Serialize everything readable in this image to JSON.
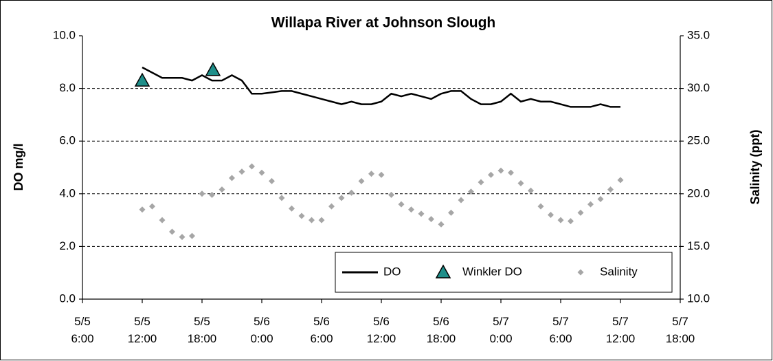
{
  "chart_data": {
    "type": "line",
    "title": "Willapa River at Johnson Slough",
    "y_label": "DO mg/l",
    "y2_label": "Salinity (ppt)",
    "xlim": [
      6,
      66
    ],
    "xticks": [
      {
        "value": 6,
        "label": "5/5 6:00"
      },
      {
        "value": 12,
        "label": "5/5 12:00"
      },
      {
        "value": 18,
        "label": "5/5 18:00"
      },
      {
        "value": 24,
        "label": "5/6 0:00"
      },
      {
        "value": 30,
        "label": "5/6 6:00"
      },
      {
        "value": 36,
        "label": "5/6 12:00"
      },
      {
        "value": 42,
        "label": "5/6 18:00"
      },
      {
        "value": 48,
        "label": "5/7 0:00"
      },
      {
        "value": 54,
        "label": "5/7 6:00"
      },
      {
        "value": 60,
        "label": "5/7 12:00"
      },
      {
        "value": 66,
        "label": "5/7 18:00"
      }
    ],
    "ylim": [
      0,
      10
    ],
    "yticks": [
      {
        "value": 0,
        "label": "0.0"
      },
      {
        "value": 2,
        "label": "2.0"
      },
      {
        "value": 4,
        "label": "4.0"
      },
      {
        "value": 6,
        "label": "6.0"
      },
      {
        "value": 8,
        "label": "8.0"
      },
      {
        "value": 10,
        "label": "10.0"
      }
    ],
    "y2lim": [
      10,
      35
    ],
    "y2ticks": [
      {
        "value": 10,
        "label": "10.0"
      },
      {
        "value": 15,
        "label": "15.0"
      },
      {
        "value": 20,
        "label": "20.0"
      },
      {
        "value": 25,
        "label": "25.0"
      },
      {
        "value": 30,
        "label": "30.0"
      },
      {
        "value": 35,
        "label": "35.0"
      }
    ],
    "grid": true,
    "legend": "lower right",
    "series": [
      {
        "name": "DO",
        "type": "line",
        "color": "#000000",
        "x": [
          12,
          13,
          14,
          15,
          16,
          17,
          18,
          19,
          20,
          21,
          22,
          23,
          24,
          25,
          26,
          27,
          28,
          29,
          30,
          31,
          32,
          33,
          34,
          35,
          36,
          37,
          38,
          39,
          40,
          41,
          42,
          43,
          44,
          45,
          46,
          47,
          48,
          49,
          50,
          51,
          52,
          53,
          54,
          55,
          56,
          57,
          58,
          59,
          60
        ],
        "values": [
          8.8,
          8.6,
          8.4,
          8.4,
          8.4,
          8.3,
          8.5,
          8.3,
          8.3,
          8.5,
          8.3,
          7.8,
          7.8,
          7.85,
          7.9,
          7.9,
          7.8,
          7.7,
          7.6,
          7.5,
          7.4,
          7.5,
          7.4,
          7.4,
          7.5,
          7.8,
          7.7,
          7.8,
          7.7,
          7.6,
          7.8,
          7.9,
          7.9,
          7.6,
          7.4,
          7.4,
          7.5,
          7.8,
          7.5,
          7.6,
          7.5,
          7.5,
          7.4,
          7.3,
          7.3,
          7.3,
          7.4,
          7.3,
          7.3
        ]
      },
      {
        "name": "Winkler DO",
        "type": "triangle",
        "color": "#1f8f8a",
        "x": [
          12,
          19.1
        ],
        "values": [
          8.3,
          8.7
        ]
      },
      {
        "name": "Salinity",
        "type": "diamond",
        "color": "#a6a6a6",
        "axis": "y2",
        "x": [
          12,
          13,
          14,
          15,
          16,
          17,
          18,
          19,
          20,
          21,
          22,
          23,
          24,
          25,
          26,
          27,
          28,
          29,
          30,
          31,
          32,
          33,
          34,
          35,
          36,
          37,
          38,
          39,
          40,
          41,
          42,
          43,
          44,
          45,
          46,
          47,
          48,
          49,
          50,
          51,
          52,
          53,
          54,
          55,
          56,
          57,
          58,
          59,
          60
        ],
        "values": [
          18.5,
          18.8,
          17.5,
          16.4,
          15.9,
          16.0,
          20.0,
          19.9,
          20.4,
          21.5,
          22.1,
          22.6,
          22.0,
          21.2,
          19.6,
          18.6,
          17.9,
          17.5,
          17.5,
          18.8,
          19.6,
          20.1,
          21.2,
          21.9,
          21.8,
          19.9,
          19.0,
          18.5,
          18.1,
          17.6,
          17.1,
          18.2,
          19.4,
          20.2,
          21.1,
          21.8,
          22.2,
          22.0,
          21.0,
          20.3,
          18.8,
          18.0,
          17.5,
          17.4,
          18.2,
          19.0,
          19.5,
          20.4,
          21.3
        ]
      }
    ]
  }
}
